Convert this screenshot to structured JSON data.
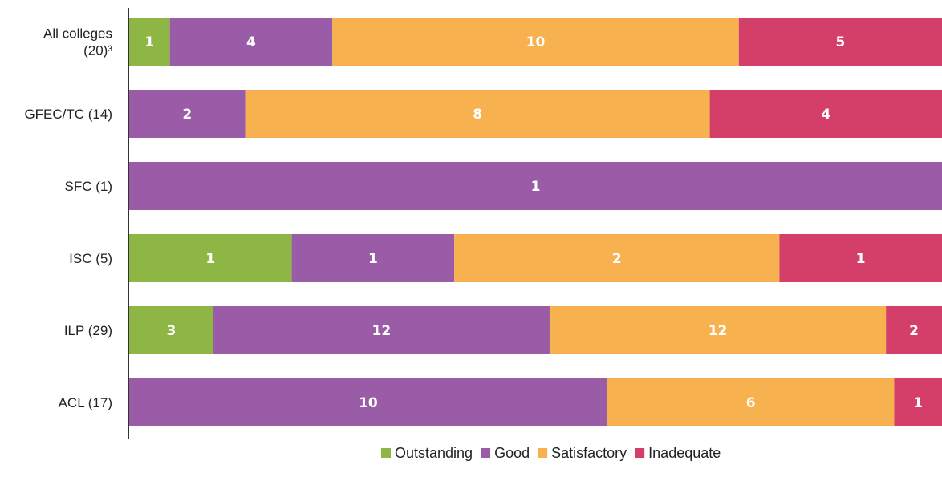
{
  "chart_data": {
    "type": "bar",
    "orientation": "horizontal",
    "stacked": "percent",
    "categories": [
      "All colleges\n(20)³",
      "GFEC/TC (14)",
      "SFC (1)",
      "ISC (5)",
      "ILP (29)",
      "ACL (17)"
    ],
    "series": [
      {
        "name": "Outstanding",
        "color": "#8db644",
        "values": [
          1,
          0,
          0,
          1,
          3,
          0
        ]
      },
      {
        "name": "Good",
        "color": "#9a5ca6",
        "values": [
          4,
          2,
          1,
          1,
          12,
          10
        ]
      },
      {
        "name": "Satisfactory",
        "color": "#f7b24f",
        "values": [
          10,
          8,
          0,
          2,
          12,
          6
        ]
      },
      {
        "name": "Inadequate",
        "color": "#d43f69",
        "values": [
          5,
          4,
          0,
          1,
          2,
          1
        ]
      }
    ],
    "title": "",
    "xlabel": "",
    "ylabel": "",
    "grid": false,
    "legend": "bottom-center"
  }
}
